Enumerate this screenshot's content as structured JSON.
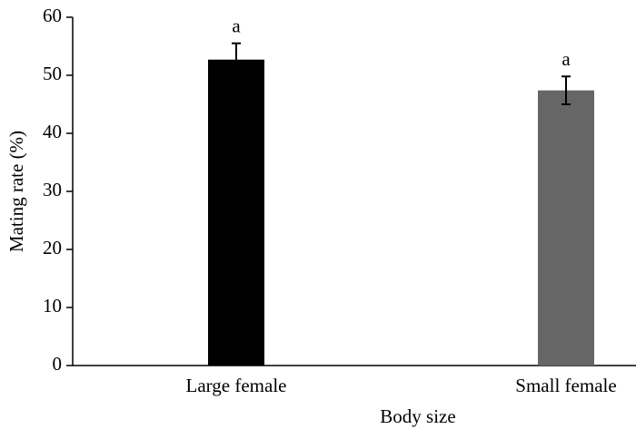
{
  "chart_data": {
    "type": "bar",
    "categories": [
      "Large female",
      "Small female"
    ],
    "values": [
      52.7,
      47.4
    ],
    "errors": [
      2.8,
      2.4
    ],
    "annotations": [
      "a",
      "a"
    ],
    "colors": [
      "#000000",
      "#666666"
    ],
    "xlabel": "Body size",
    "ylabel": "Mating rate (%)",
    "ylim": [
      0,
      60
    ],
    "yticks": [
      0,
      10,
      20,
      30,
      40,
      50,
      60
    ],
    "grid": false
  }
}
